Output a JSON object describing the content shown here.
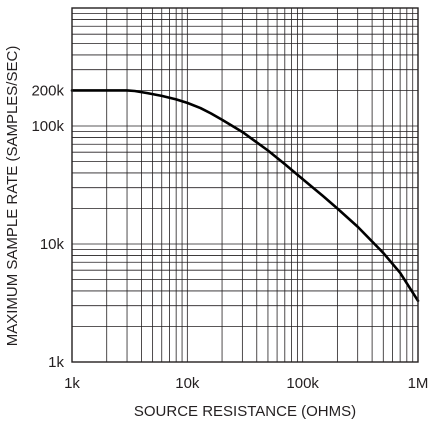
{
  "chart_data": {
    "type": "line",
    "title": "",
    "xlabel": "SOURCE RESISTANCE  (OHMS)",
    "ylabel": "MAXIMUM SAMPLE RATE (SAMPLES/SEC)",
    "xscale": "log",
    "yscale": "log",
    "xlim": [
      1000,
      1000000
    ],
    "ylim": [
      1000,
      1000000
    ],
    "grid": true,
    "x_ticks": [
      {
        "value": 1000,
        "label": "1k"
      },
      {
        "value": 10000,
        "label": "10k"
      },
      {
        "value": 100000,
        "label": "100k"
      },
      {
        "value": 1000000,
        "label": "1M"
      }
    ],
    "y_ticks": [
      {
        "value": 1000,
        "label": "1k"
      },
      {
        "value": 10000,
        "label": "10k"
      },
      {
        "value": 100000,
        "label": "100k"
      },
      {
        "value": 200000,
        "label": "200k"
      }
    ],
    "series": [
      {
        "color": "#000000",
        "x": [
          1000,
          2000,
          3000,
          3500,
          4500,
          6000,
          8000,
          10000,
          13000,
          16000,
          20000,
          30000,
          50000,
          70000,
          100000,
          150000,
          200000,
          300000,
          500000,
          700000,
          1000000
        ],
        "y": [
          200000,
          200000,
          200000,
          198000,
          190000,
          180000,
          168000,
          157000,
          142000,
          128000,
          113000,
          89000,
          62000,
          47500,
          35500,
          25500,
          20000,
          14000,
          8400,
          5700,
          3300
        ]
      }
    ]
  }
}
